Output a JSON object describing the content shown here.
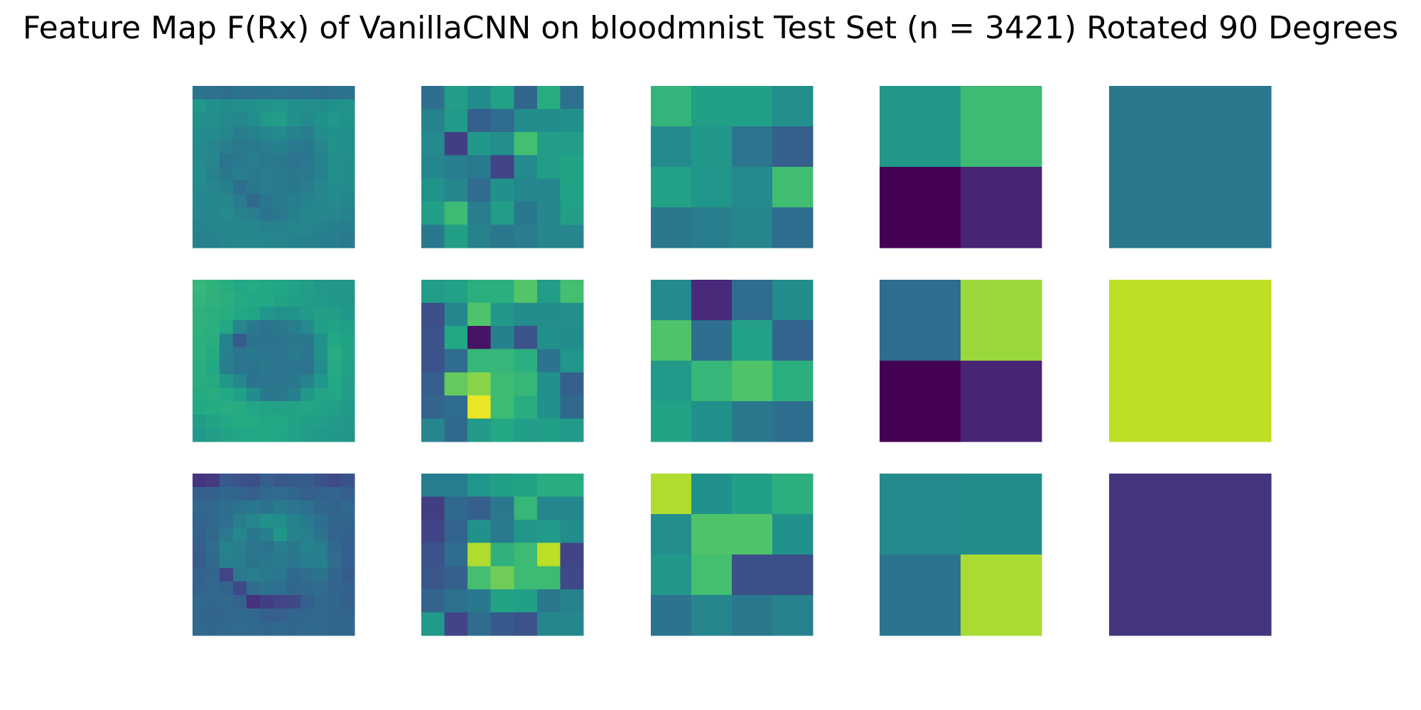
{
  "title": "Feature Map F(Rx) of VanillaCNN on bloodmnist Test Set (n = 3421) Rotated 90 Degrees",
  "chart_data": {
    "type": "heatmap",
    "colormap": "viridis",
    "value_range": [
      0,
      1
    ],
    "grid_shape": [
      3,
      5
    ],
    "axes_visible": false,
    "panels": [
      [
        {
          "values": [
            [
              0.38,
              0.37,
              0.36,
              0.38,
              0.37,
              0.38,
              0.39,
              0.37,
              0.38,
              0.36,
              0.37,
              0.38
            ],
            [
              0.52,
              0.5,
              0.48,
              0.49,
              0.5,
              0.51,
              0.52,
              0.5,
              0.49,
              0.48,
              0.5,
              0.51
            ],
            [
              0.5,
              0.49,
              0.47,
              0.46,
              0.48,
              0.54,
              0.55,
              0.5,
              0.47,
              0.5,
              0.52,
              0.5
            ],
            [
              0.48,
              0.47,
              0.45,
              0.42,
              0.44,
              0.46,
              0.47,
              0.44,
              0.42,
              0.48,
              0.5,
              0.49
            ],
            [
              0.47,
              0.46,
              0.42,
              0.4,
              0.41,
              0.42,
              0.43,
              0.41,
              0.4,
              0.45,
              0.5,
              0.49
            ],
            [
              0.47,
              0.45,
              0.38,
              0.4,
              0.42,
              0.4,
              0.4,
              0.38,
              0.4,
              0.44,
              0.49,
              0.48
            ],
            [
              0.48,
              0.44,
              0.4,
              0.42,
              0.41,
              0.42,
              0.41,
              0.4,
              0.41,
              0.43,
              0.49,
              0.48
            ],
            [
              0.47,
              0.45,
              0.43,
              0.36,
              0.4,
              0.42,
              0.41,
              0.4,
              0.42,
              0.45,
              0.48,
              0.47
            ],
            [
              0.46,
              0.46,
              0.45,
              0.41,
              0.34,
              0.39,
              0.41,
              0.42,
              0.44,
              0.46,
              0.47,
              0.46
            ],
            [
              0.45,
              0.46,
              0.47,
              0.44,
              0.42,
              0.38,
              0.4,
              0.43,
              0.45,
              0.46,
              0.45,
              0.44
            ],
            [
              0.44,
              0.45,
              0.46,
              0.46,
              0.45,
              0.44,
              0.44,
              0.45,
              0.45,
              0.44,
              0.43,
              0.42
            ],
            [
              0.43,
              0.44,
              0.45,
              0.46,
              0.46,
              0.45,
              0.45,
              0.44,
              0.43,
              0.42,
              0.42,
              0.41
            ]
          ]
        },
        {
          "values": [
            [
              0.36,
              0.55,
              0.48,
              0.57,
              0.33,
              0.62,
              0.37
            ],
            [
              0.44,
              0.54,
              0.3,
              0.35,
              0.48,
              0.48,
              0.5
            ],
            [
              0.47,
              0.18,
              0.53,
              0.49,
              0.7,
              0.55,
              0.55
            ],
            [
              0.46,
              0.42,
              0.41,
              0.2,
              0.47,
              0.55,
              0.58
            ],
            [
              0.51,
              0.46,
              0.35,
              0.5,
              0.46,
              0.46,
              0.58
            ],
            [
              0.56,
              0.68,
              0.42,
              0.55,
              0.4,
              0.46,
              0.56
            ],
            [
              0.4,
              0.56,
              0.44,
              0.4,
              0.42,
              0.45,
              0.45
            ]
          ]
        },
        {
          "values": [
            [
              0.65,
              0.56,
              0.56,
              0.49
            ],
            [
              0.47,
              0.53,
              0.39,
              0.3
            ],
            [
              0.57,
              0.52,
              0.47,
              0.69
            ],
            [
              0.4,
              0.42,
              0.45,
              0.36
            ]
          ]
        },
        {
          "values": [
            [
              0.53,
              0.68
            ],
            [
              0.0,
              0.1
            ]
          ]
        },
        {
          "values": [
            [
              0.4
            ]
          ]
        }
      ],
      [
        {
          "values": [
            [
              0.66,
              0.64,
              0.62,
              0.6,
              0.61,
              0.6,
              0.59,
              0.57,
              0.55,
              0.53,
              0.52,
              0.53
            ],
            [
              0.65,
              0.64,
              0.63,
              0.61,
              0.6,
              0.6,
              0.58,
              0.56,
              0.55,
              0.54,
              0.53,
              0.52
            ],
            [
              0.64,
              0.63,
              0.62,
              0.6,
              0.58,
              0.52,
              0.5,
              0.51,
              0.54,
              0.56,
              0.55,
              0.53
            ],
            [
              0.64,
              0.63,
              0.6,
              0.45,
              0.4,
              0.38,
              0.4,
              0.42,
              0.47,
              0.55,
              0.58,
              0.56
            ],
            [
              0.63,
              0.62,
              0.44,
              0.28,
              0.38,
              0.38,
              0.38,
              0.4,
              0.4,
              0.5,
              0.6,
              0.58
            ],
            [
              0.63,
              0.61,
              0.43,
              0.38,
              0.4,
              0.39,
              0.39,
              0.41,
              0.39,
              0.5,
              0.62,
              0.58
            ],
            [
              0.62,
              0.6,
              0.42,
              0.39,
              0.38,
              0.4,
              0.38,
              0.39,
              0.38,
              0.48,
              0.61,
              0.57
            ],
            [
              0.62,
              0.61,
              0.53,
              0.46,
              0.38,
              0.39,
              0.39,
              0.4,
              0.44,
              0.52,
              0.6,
              0.56
            ],
            [
              0.61,
              0.62,
              0.6,
              0.56,
              0.48,
              0.4,
              0.4,
              0.43,
              0.52,
              0.58,
              0.59,
              0.55
            ],
            [
              0.6,
              0.61,
              0.62,
              0.61,
              0.59,
              0.58,
              0.57,
              0.58,
              0.59,
              0.58,
              0.56,
              0.54
            ],
            [
              0.55,
              0.58,
              0.6,
              0.61,
              0.61,
              0.6,
              0.6,
              0.58,
              0.56,
              0.55,
              0.54,
              0.53
            ],
            [
              0.53,
              0.55,
              0.58,
              0.59,
              0.6,
              0.6,
              0.59,
              0.57,
              0.55,
              0.54,
              0.53,
              0.52
            ]
          ]
        },
        {
          "values": [
            [
              0.55,
              0.57,
              0.63,
              0.63,
              0.73,
              0.55,
              0.7
            ],
            [
              0.24,
              0.46,
              0.72,
              0.53,
              0.48,
              0.48,
              0.49
            ],
            [
              0.25,
              0.6,
              0.05,
              0.43,
              0.25,
              0.5,
              0.48
            ],
            [
              0.25,
              0.35,
              0.66,
              0.66,
              0.63,
              0.38,
              0.52
            ],
            [
              0.3,
              0.76,
              0.82,
              0.68,
              0.66,
              0.5,
              0.3
            ],
            [
              0.32,
              0.35,
              0.97,
              0.68,
              0.62,
              0.5,
              0.34
            ],
            [
              0.45,
              0.34,
              0.54,
              0.6,
              0.55,
              0.56,
              0.54
            ]
          ]
        },
        {
          "values": [
            [
              0.47,
              0.12,
              0.35,
              0.48
            ],
            [
              0.72,
              0.36,
              0.57,
              0.32
            ],
            [
              0.54,
              0.66,
              0.72,
              0.63
            ],
            [
              0.58,
              0.5,
              0.4,
              0.36
            ]
          ]
        },
        {
          "values": [
            [
              0.35,
              0.85
            ],
            [
              0.0,
              0.1
            ]
          ]
        },
        {
          "values": [
            [
              0.9
            ]
          ]
        }
      ],
      [
        {
          "values": [
            [
              0.15,
              0.17,
              0.28,
              0.25,
              0.24,
              0.3,
              0.27,
              0.28,
              0.29,
              0.25,
              0.23,
              0.26
            ],
            [
              0.3,
              0.31,
              0.33,
              0.32,
              0.3,
              0.34,
              0.35,
              0.33,
              0.3,
              0.31,
              0.32,
              0.3
            ],
            [
              0.33,
              0.34,
              0.36,
              0.38,
              0.4,
              0.38,
              0.41,
              0.39,
              0.37,
              0.33,
              0.32,
              0.34
            ],
            [
              0.32,
              0.33,
              0.36,
              0.42,
              0.45,
              0.5,
              0.48,
              0.44,
              0.41,
              0.36,
              0.33,
              0.32
            ],
            [
              0.31,
              0.34,
              0.4,
              0.46,
              0.4,
              0.43,
              0.52,
              0.44,
              0.43,
              0.38,
              0.32,
              0.31
            ],
            [
              0.3,
              0.35,
              0.44,
              0.42,
              0.39,
              0.38,
              0.42,
              0.4,
              0.44,
              0.42,
              0.34,
              0.3
            ],
            [
              0.29,
              0.34,
              0.43,
              0.42,
              0.38,
              0.4,
              0.41,
              0.39,
              0.42,
              0.43,
              0.35,
              0.3
            ],
            [
              0.31,
              0.33,
              0.2,
              0.4,
              0.42,
              0.41,
              0.39,
              0.34,
              0.36,
              0.38,
              0.33,
              0.29
            ],
            [
              0.32,
              0.34,
              0.32,
              0.22,
              0.35,
              0.38,
              0.36,
              0.33,
              0.34,
              0.35,
              0.32,
              0.31
            ],
            [
              0.34,
              0.33,
              0.34,
              0.31,
              0.14,
              0.18,
              0.2,
              0.22,
              0.3,
              0.34,
              0.33,
              0.31
            ],
            [
              0.33,
              0.32,
              0.33,
              0.34,
              0.33,
              0.3,
              0.3,
              0.32,
              0.33,
              0.34,
              0.33,
              0.32
            ],
            [
              0.34,
              0.33,
              0.34,
              0.35,
              0.34,
              0.33,
              0.34,
              0.33,
              0.34,
              0.34,
              0.33,
              0.33
            ]
          ]
        },
        {
          "values": [
            [
              0.42,
              0.42,
              0.52,
              0.56,
              0.58,
              0.62,
              0.62
            ],
            [
              0.18,
              0.34,
              0.3,
              0.4,
              0.66,
              0.46,
              0.46
            ],
            [
              0.2,
              0.32,
              0.5,
              0.41,
              0.52,
              0.54,
              0.48
            ],
            [
              0.25,
              0.35,
              0.88,
              0.64,
              0.68,
              0.9,
              0.2
            ],
            [
              0.27,
              0.3,
              0.7,
              0.78,
              0.68,
              0.68,
              0.22
            ],
            [
              0.32,
              0.37,
              0.4,
              0.58,
              0.56,
              0.4,
              0.44
            ],
            [
              0.54,
              0.2,
              0.35,
              0.28,
              0.25,
              0.46,
              0.46
            ]
          ]
        },
        {
          "values": [
            [
              0.88,
              0.5,
              0.56,
              0.63
            ],
            [
              0.49,
              0.72,
              0.72,
              0.5
            ],
            [
              0.53,
              0.7,
              0.24,
              0.24
            ],
            [
              0.38,
              0.45,
              0.4,
              0.44
            ]
          ]
        },
        {
          "values": [
            [
              0.47,
              0.48
            ],
            [
              0.38,
              0.87
            ]
          ]
        },
        {
          "values": [
            [
              0.15
            ]
          ]
        }
      ]
    ]
  }
}
